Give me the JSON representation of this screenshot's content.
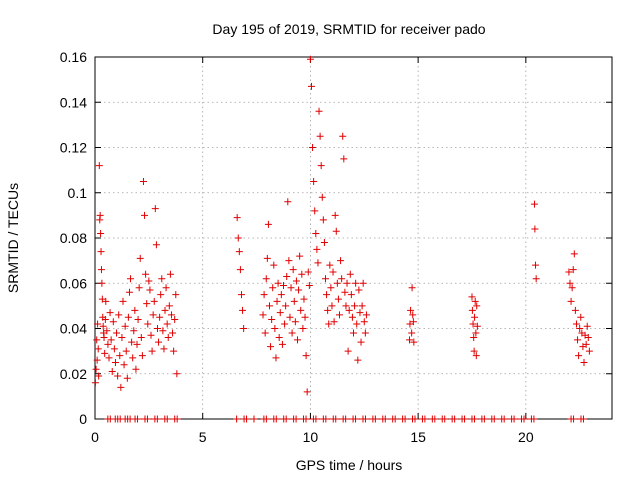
{
  "chart_data": {
    "type": "scatter",
    "title": "Day 195 of 2019, SRMTID for receiver pado",
    "xlabel": "GPS time / hours",
    "ylabel": "SRMTID / TECUs",
    "xlim": [
      0,
      24
    ],
    "ylim": [
      0,
      0.16
    ],
    "xticks": [
      0,
      5,
      10,
      15,
      20
    ],
    "xtick_labels": [
      "0",
      "5",
      "10",
      "15",
      "20"
    ],
    "yticks": [
      0,
      0.02,
      0.04,
      0.06,
      0.08,
      0.1,
      0.12,
      0.14,
      0.16
    ],
    "ytick_labels": [
      "0",
      "0.02",
      "0.04",
      "0.06",
      "0.08",
      "0.1",
      "0.12",
      "0.14",
      "0.16"
    ],
    "grid": true,
    "marker": "+",
    "color": "#e00000",
    "series": [
      {
        "name": "SRMTID",
        "points": [
          [
            0.02,
            0.016
          ],
          [
            0.05,
            0.022
          ],
          [
            0.08,
            0.035
          ],
          [
            0.1,
            0.026
          ],
          [
            0.12,
            0.042
          ],
          [
            0.15,
            0.031
          ],
          [
            0.17,
            0.019
          ],
          [
            0.2,
            0.112
          ],
          [
            0.22,
            0.088
          ],
          [
            0.24,
            0.09
          ],
          [
            0.26,
            0.082
          ],
          [
            0.28,
            0.074
          ],
          [
            0.3,
            0.066
          ],
          [
            0.32,
            0.06
          ],
          [
            0.34,
            0.053
          ],
          [
            0.36,
            0.045
          ],
          [
            0.38,
            0.041
          ],
          [
            0.4,
            0.038
          ],
          [
            0.42,
            0.036
          ],
          [
            0.45,
            0.029
          ],
          [
            0.48,
            0.044
          ],
          [
            0.5,
            0.052
          ],
          [
            0.55,
            0.039
          ],
          [
            0.6,
            0.033
          ],
          [
            0.65,
            0.027
          ],
          [
            0.7,
            0.047
          ],
          [
            0.75,
            0.035
          ],
          [
            0.8,
            0.021
          ],
          [
            0.85,
            0.043
          ],
          [
            0.9,
            0.031
          ],
          [
            0.95,
            0.025
          ],
          [
            1.0,
            0.038
          ],
          [
            1.05,
            0.019
          ],
          [
            1.1,
            0.046
          ],
          [
            1.15,
            0.028
          ],
          [
            1.2,
            0.014
          ],
          [
            1.25,
            0.036
          ],
          [
            1.3,
            0.052
          ],
          [
            1.35,
            0.024
          ],
          [
            1.4,
            0.041
          ],
          [
            1.45,
            0.03
          ],
          [
            1.5,
            0.018
          ],
          [
            1.55,
            0.045
          ],
          [
            1.6,
            0.056
          ],
          [
            1.65,
            0.062
          ],
          [
            1.7,
            0.034
          ],
          [
            1.75,
            0.027
          ],
          [
            1.8,
            0.039
          ],
          [
            1.85,
            0.048
          ],
          [
            1.9,
            0.022
          ],
          [
            1.95,
            0.033
          ],
          [
            2.0,
            0.044
          ],
          [
            2.05,
            0.058
          ],
          [
            2.1,
            0.071
          ],
          [
            2.15,
            0.036
          ],
          [
            2.2,
            0.028
          ],
          [
            2.25,
            0.105
          ],
          [
            2.3,
            0.09
          ],
          [
            2.35,
            0.064
          ],
          [
            2.4,
            0.051
          ],
          [
            2.45,
            0.042
          ],
          [
            2.5,
            0.061
          ],
          [
            2.55,
            0.057
          ],
          [
            2.6,
            0.037
          ],
          [
            2.65,
            0.03
          ],
          [
            2.7,
            0.046
          ],
          [
            2.75,
            0.052
          ],
          [
            2.8,
            0.093
          ],
          [
            2.85,
            0.077
          ],
          [
            2.9,
            0.04
          ],
          [
            2.95,
            0.034
          ],
          [
            3.0,
            0.045
          ],
          [
            3.05,
            0.055
          ],
          [
            3.1,
            0.062
          ],
          [
            3.15,
            0.039
          ],
          [
            3.2,
            0.031
          ],
          [
            3.25,
            0.048
          ],
          [
            3.3,
            0.058
          ],
          [
            3.35,
            0.042
          ],
          [
            3.4,
            0.036
          ],
          [
            3.45,
            0.05
          ],
          [
            3.5,
            0.064
          ],
          [
            3.55,
            0.046
          ],
          [
            3.6,
            0.038
          ],
          [
            3.65,
            0.03
          ],
          [
            3.7,
            0.044
          ],
          [
            3.75,
            0.055
          ],
          [
            3.8,
            0.02
          ],
          [
            6.6,
            0.089
          ],
          [
            6.65,
            0.08
          ],
          [
            6.7,
            0.074
          ],
          [
            6.75,
            0.066
          ],
          [
            6.8,
            0.055
          ],
          [
            6.85,
            0.048
          ],
          [
            6.9,
            0.04
          ],
          [
            7.8,
            0.046
          ],
          [
            7.85,
            0.055
          ],
          [
            7.9,
            0.038
          ],
          [
            7.95,
            0.062
          ],
          [
            8.0,
            0.071
          ],
          [
            8.05,
            0.086
          ],
          [
            8.1,
            0.05
          ],
          [
            8.15,
            0.032
          ],
          [
            8.2,
            0.044
          ],
          [
            8.25,
            0.058
          ],
          [
            8.3,
            0.068
          ],
          [
            8.35,
            0.04
          ],
          [
            8.4,
            0.027
          ],
          [
            8.45,
            0.052
          ],
          [
            8.5,
            0.06
          ],
          [
            8.55,
            0.036
          ],
          [
            8.6,
            0.047
          ],
          [
            8.65,
            0.055
          ],
          [
            8.7,
            0.033
          ],
          [
            8.75,
            0.059
          ],
          [
            8.8,
            0.042
          ],
          [
            8.85,
            0.05
          ],
          [
            8.9,
            0.063
          ],
          [
            8.95,
            0.096
          ],
          [
            9.0,
            0.07
          ],
          [
            9.05,
            0.045
          ],
          [
            9.1,
            0.058
          ],
          [
            9.15,
            0.038
          ],
          [
            9.2,
            0.066
          ],
          [
            9.25,
            0.052
          ],
          [
            9.3,
            0.043
          ],
          [
            9.35,
            0.061
          ],
          [
            9.4,
            0.035
          ],
          [
            9.45,
            0.057
          ],
          [
            9.5,
            0.072
          ],
          [
            9.55,
            0.048
          ],
          [
            9.6,
            0.064
          ],
          [
            9.65,
            0.04
          ],
          [
            9.7,
            0.053
          ],
          [
            9.75,
            0.045
          ],
          [
            9.8,
            0.028
          ],
          [
            9.85,
            0.012
          ],
          [
            9.9,
            0.065
          ],
          [
            9.95,
            0.059
          ],
          [
            10.0,
            0.159
          ],
          [
            10.05,
            0.147
          ],
          [
            10.1,
            0.12
          ],
          [
            10.15,
            0.105
          ],
          [
            10.2,
            0.092
          ],
          [
            10.25,
            0.082
          ],
          [
            10.3,
            0.075
          ],
          [
            10.35,
            0.069
          ],
          [
            10.4,
            0.136
          ],
          [
            10.45,
            0.125
          ],
          [
            10.5,
            0.112
          ],
          [
            10.55,
            0.098
          ],
          [
            10.6,
            0.088
          ],
          [
            10.65,
            0.078
          ],
          [
            10.7,
            0.062
          ],
          [
            10.75,
            0.055
          ],
          [
            10.8,
            0.048
          ],
          [
            10.85,
            0.042
          ],
          [
            10.9,
            0.068
          ],
          [
            10.95,
            0.058
          ],
          [
            11.0,
            0.05
          ],
          [
            11.05,
            0.065
          ],
          [
            11.1,
            0.043
          ],
          [
            11.15,
            0.09
          ],
          [
            11.2,
            0.083
          ],
          [
            11.25,
            0.06
          ],
          [
            11.3,
            0.053
          ],
          [
            11.35,
            0.046
          ],
          [
            11.4,
            0.07
          ],
          [
            11.45,
            0.062
          ],
          [
            11.5,
            0.125
          ],
          [
            11.55,
            0.115
          ],
          [
            11.6,
            0.056
          ],
          [
            11.65,
            0.05
          ],
          [
            11.7,
            0.06
          ],
          [
            11.75,
            0.03
          ],
          [
            11.8,
            0.048
          ],
          [
            11.85,
            0.064
          ],
          [
            11.9,
            0.055
          ],
          [
            11.95,
            0.045
          ],
          [
            12.0,
            0.038
          ],
          [
            12.05,
            0.05
          ],
          [
            12.1,
            0.06
          ],
          [
            12.15,
            0.042
          ],
          [
            12.2,
            0.026
          ],
          [
            12.25,
            0.057
          ],
          [
            12.3,
            0.047
          ],
          [
            12.35,
            0.034
          ],
          [
            12.4,
            0.05
          ],
          [
            12.45,
            0.06
          ],
          [
            12.5,
            0.043
          ],
          [
            12.55,
            0.038
          ],
          [
            12.6,
            0.046
          ],
          [
            14.6,
            0.035
          ],
          [
            14.62,
            0.042
          ],
          [
            14.65,
            0.048
          ],
          [
            14.7,
            0.038
          ],
          [
            14.72,
            0.058
          ],
          [
            14.75,
            0.046
          ],
          [
            14.78,
            0.043
          ],
          [
            14.8,
            0.034
          ],
          [
            17.5,
            0.054
          ],
          [
            17.52,
            0.048
          ],
          [
            17.55,
            0.042
          ],
          [
            17.58,
            0.036
          ],
          [
            17.6,
            0.03
          ],
          [
            17.62,
            0.045
          ],
          [
            17.65,
            0.052
          ],
          [
            17.68,
            0.038
          ],
          [
            17.7,
            0.028
          ],
          [
            17.72,
            0.05
          ],
          [
            17.75,
            0.041
          ],
          [
            20.4,
            0.095
          ],
          [
            20.42,
            0.084
          ],
          [
            20.45,
            0.068
          ],
          [
            20.48,
            0.062
          ],
          [
            22.0,
            0.065
          ],
          [
            22.05,
            0.06
          ],
          [
            22.1,
            0.052
          ],
          [
            22.15,
            0.058
          ],
          [
            22.2,
            0.066
          ],
          [
            22.25,
            0.073
          ],
          [
            22.3,
            0.048
          ],
          [
            22.35,
            0.042
          ],
          [
            22.4,
            0.035
          ],
          [
            22.45,
            0.028
          ],
          [
            22.5,
            0.04
          ],
          [
            22.55,
            0.045
          ],
          [
            22.6,
            0.038
          ],
          [
            22.65,
            0.032
          ],
          [
            22.7,
            0.025
          ],
          [
            22.75,
            0.037
          ],
          [
            22.8,
            0.033
          ],
          [
            22.85,
            0.041
          ],
          [
            22.9,
            0.036
          ],
          [
            22.95,
            0.03
          ]
        ]
      }
    ]
  }
}
